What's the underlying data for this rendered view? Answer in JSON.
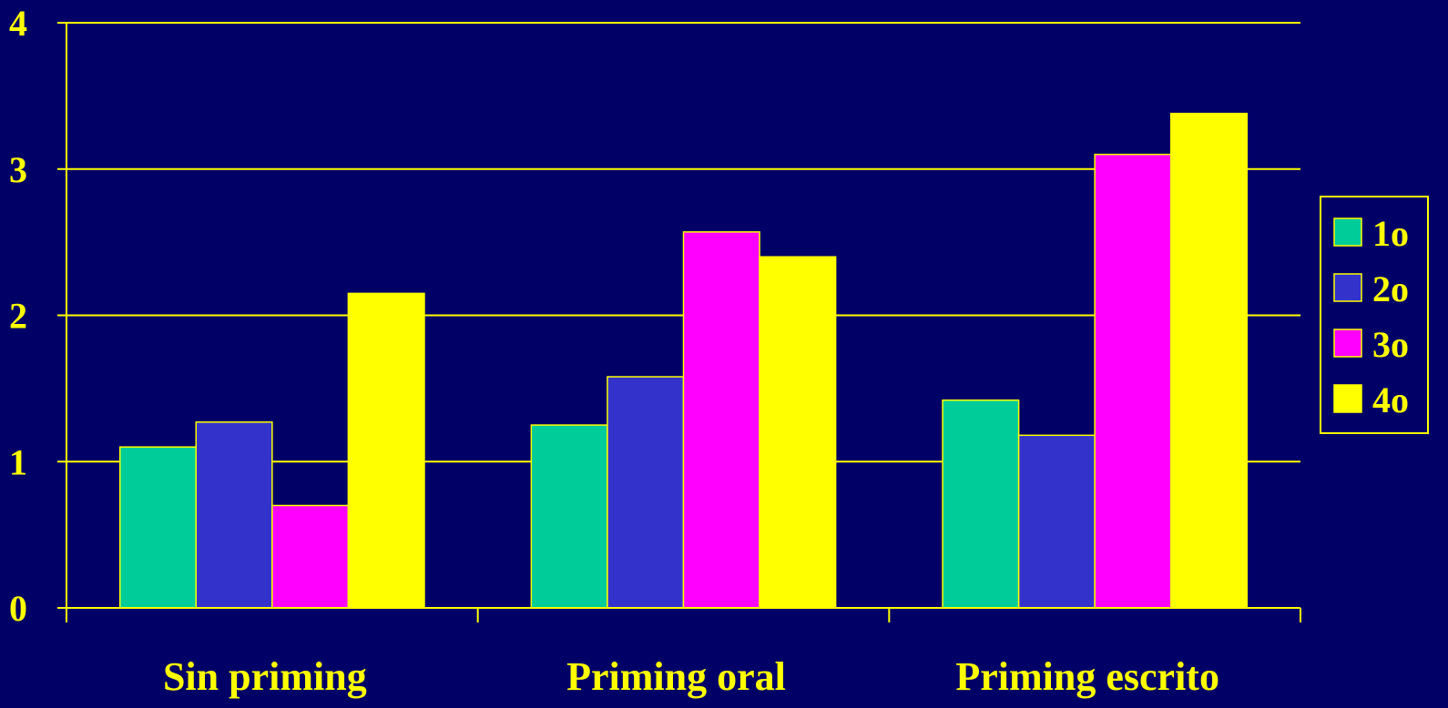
{
  "chart_data": {
    "type": "bar",
    "categories": [
      "Sin priming",
      "Priming oral",
      "Priming escrito"
    ],
    "series": [
      {
        "name": "1o",
        "color": "#00CC99",
        "values": [
          1.1,
          1.25,
          1.42
        ]
      },
      {
        "name": "2o",
        "color": "#3333CC",
        "values": [
          1.27,
          1.58,
          1.18
        ]
      },
      {
        "name": "3o",
        "color": "#FF00FF",
        "values": [
          0.7,
          2.57,
          3.1
        ]
      },
      {
        "name": "4o",
        "color": "#FFFF00",
        "values": [
          2.15,
          2.4,
          3.38
        ]
      }
    ],
    "yticks": [
      "0",
      "1",
      "2",
      "3",
      "4"
    ],
    "ylim": [
      0,
      4
    ],
    "grid": true,
    "legend_position": "right",
    "colors": {
      "background": "#000066",
      "axis": "#FFFF00",
      "text": "#FFFF00"
    }
  }
}
